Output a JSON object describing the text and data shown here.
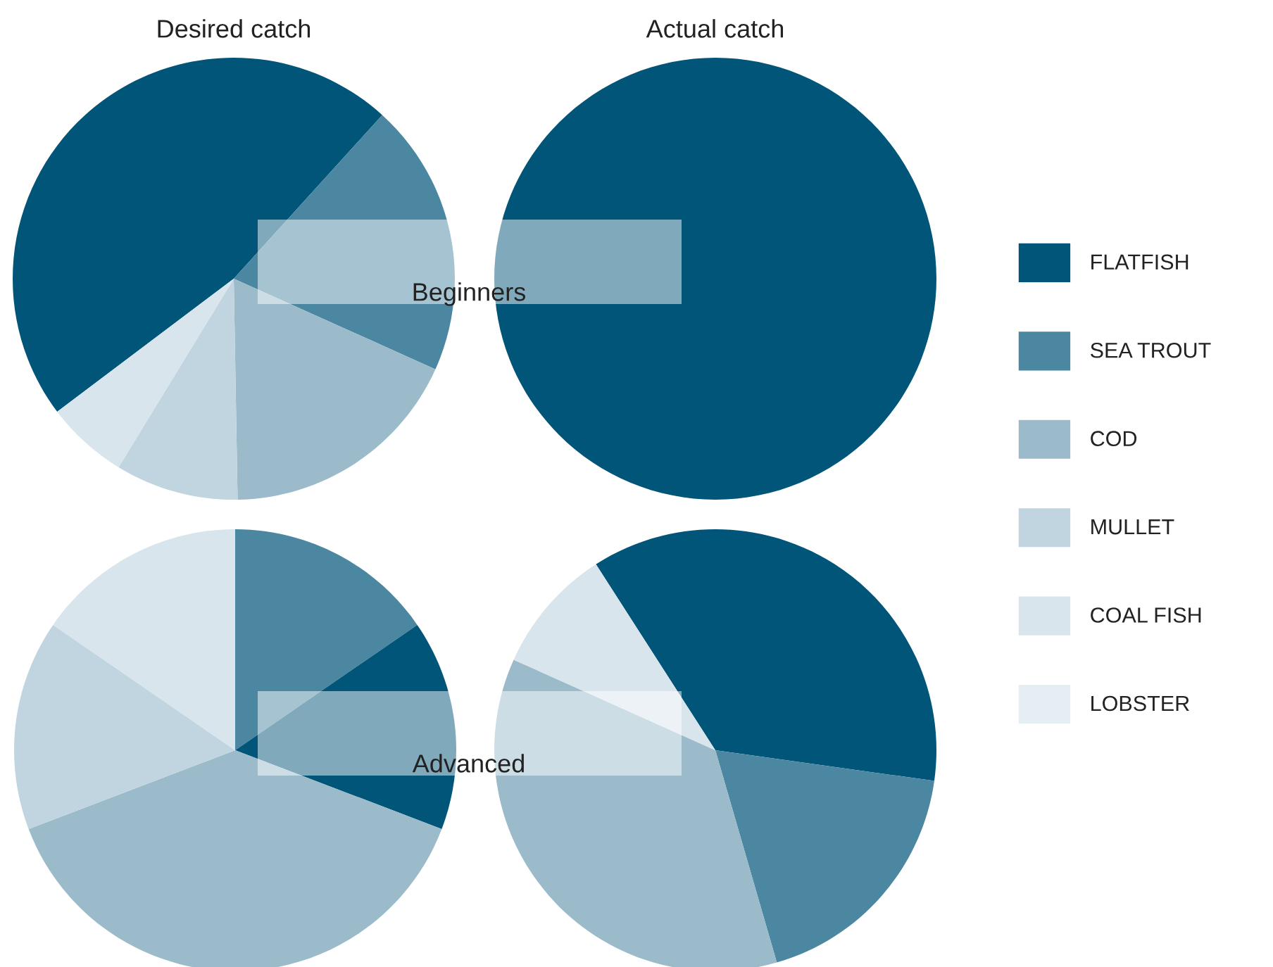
{
  "chart_data": [
    {
      "type": "pie",
      "title": "Desired catch",
      "annotations": [
        "Beginners"
      ],
      "categories": [
        "FLATFISH",
        "SEA TROUT",
        "COD",
        "MULLET",
        "COAL FISH",
        "LOBSTER"
      ],
      "values": [
        47,
        20,
        18,
        9,
        6,
        0
      ],
      "colors": [
        "#005578",
        "#4b87a1",
        "#9bbbcb",
        "#c0d5df",
        "#d9e5ec",
        "#e5eef2"
      ],
      "legend": "right"
    },
    {
      "type": "pie",
      "title": "Actual catch",
      "categories": [
        null,
        null,
        null,
        null,
        null,
        null
      ],
      "values": [
        100,
        0,
        0,
        0,
        0,
        0
      ],
      "colors": [
        "#005578",
        "#4b87a1",
        "#9bbbcb",
        "#c0d5df",
        "#d9e5ec",
        "#e5eef2"
      ]
    },
    {
      "type": "pie",
      "annotations": [
        "Advanced"
      ],
      "categories": [
        null,
        null,
        null,
        null,
        null,
        null
      ],
      "values": [
        15.4,
        15.4,
        38.4,
        15.4,
        15.4,
        0
      ],
      "colors": [
        "#4b87a1",
        "#005578",
        "#9bbbcb",
        "#c0d5df",
        "#d9e5ec",
        "#e5eef2"
      ]
    },
    {
      "type": "pie",
      "categories": [
        null,
        null,
        null,
        null,
        null,
        null
      ],
      "values": [
        36.3,
        18.3,
        36.2,
        0,
        9.2,
        0
      ],
      "colors": [
        "#005578",
        "#4b87a1",
        "#9bbbcb",
        "#c0d5df",
        "#d9e5ec",
        "#e5eef2"
      ]
    }
  ]
}
